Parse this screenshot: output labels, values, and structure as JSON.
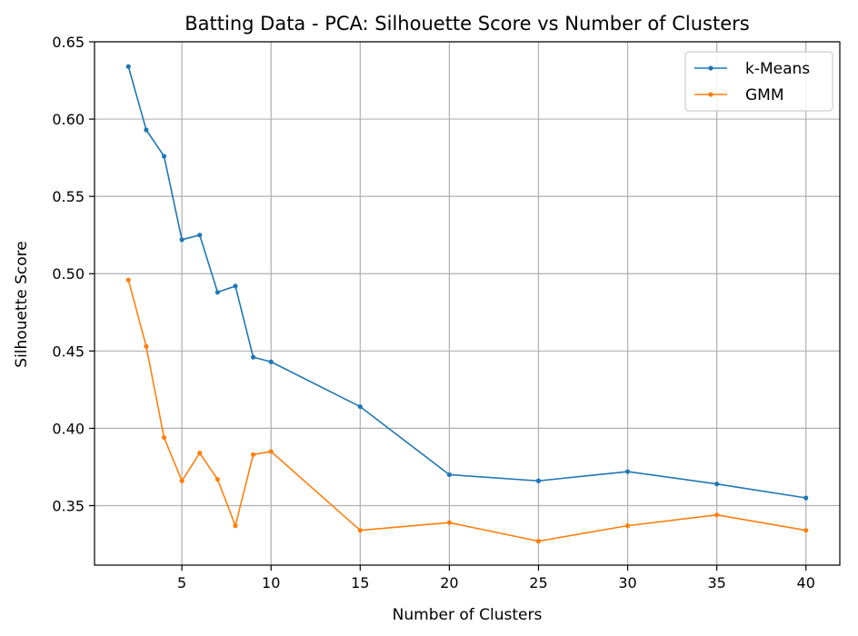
{
  "chart_data": {
    "type": "line",
    "title": "Batting Data - PCA: Silhouette Score vs Number of Clusters",
    "xlabel": "Number of Clusters",
    "ylabel": "Silhouette Score",
    "xlim": [
      0.1,
      41.9
    ],
    "ylim": [
      0.3115,
      0.65
    ],
    "xticks": [
      5,
      10,
      15,
      20,
      25,
      30,
      35,
      40
    ],
    "yticks": [
      0.35,
      0.4,
      0.45,
      0.5,
      0.55,
      0.6,
      0.65
    ],
    "grid": true,
    "legend_position": "top-right",
    "x": [
      2,
      3,
      4,
      5,
      6,
      7,
      8,
      9,
      10,
      15,
      20,
      25,
      30,
      35,
      40
    ],
    "series": [
      {
        "name": "k-Means",
        "color": "#1f77b4",
        "values": [
          0.634,
          0.593,
          0.576,
          0.522,
          0.525,
          0.488,
          0.492,
          0.446,
          0.443,
          0.414,
          0.37,
          0.366,
          0.372,
          0.364,
          0.355
        ]
      },
      {
        "name": "GMM",
        "color": "#ff7f0e",
        "values": [
          0.496,
          0.453,
          0.394,
          0.366,
          0.384,
          0.367,
          0.337,
          0.383,
          0.385,
          0.334,
          0.339,
          0.327,
          0.337,
          0.344,
          0.334
        ]
      }
    ]
  }
}
